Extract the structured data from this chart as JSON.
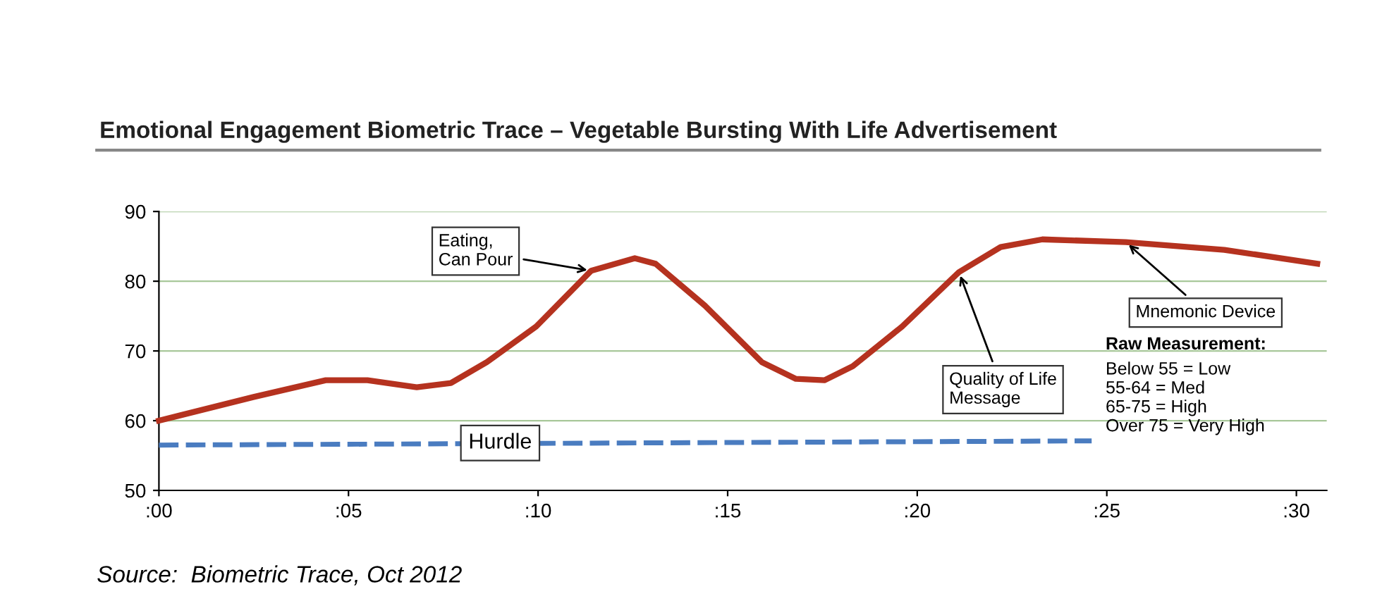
{
  "chart_data": {
    "type": "line",
    "title": "Emotional Engagement Biometric Trace – Vegetable Bursting With Life Advertisement",
    "xlim": [
      0,
      30.8
    ],
    "xticks": [
      {
        "value": 0,
        "label": ":00"
      },
      {
        "value": 5,
        "label": ":05"
      },
      {
        "value": 10,
        "label": ":10"
      },
      {
        "value": 15,
        "label": ":15"
      },
      {
        "value": 20,
        "label": ":20"
      },
      {
        "value": 25,
        "label": ":25"
      },
      {
        "value": 30,
        "label": ":30"
      }
    ],
    "ylim": [
      50,
      90
    ],
    "yticks": [
      50,
      60,
      70,
      80,
      90
    ],
    "grid": "y",
    "series": [
      {
        "color": "#b5321f",
        "line_style": "solid",
        "x": [
          0,
          2.5,
          4.4,
          5.5,
          6.8,
          7.7,
          8.65,
          9.95,
          11.4,
          12.55,
          13.1,
          14.4,
          15.9,
          16.8,
          17.55,
          18.3,
          19.6,
          21.1,
          22.2,
          23.3,
          25.5,
          28.1,
          30.55
        ],
        "values": [
          60,
          63.4,
          65.8,
          65.8,
          64.8,
          65.4,
          68.4,
          73.5,
          81.5,
          83.3,
          82.5,
          76.5,
          68.4,
          66,
          65.8,
          67.8,
          73.5,
          81.3,
          84.9,
          86,
          85.6,
          84.5,
          82.5
        ]
      },
      {
        "color": "#4a7cc0",
        "line_style": "dashed",
        "x": [
          0,
          24.6
        ],
        "values": [
          56.5,
          57.1
        ]
      }
    ],
    "annotations": [
      {
        "text": "Eating,\nCan Pour",
        "x": 11.4,
        "y": 81.5
      },
      {
        "text": "Quality of Life\nMessage",
        "x": 21.1,
        "y": 81.3
      },
      {
        "text": "Mnemonic Device",
        "x": 25.5,
        "y": 85.6
      },
      {
        "text": "Hurdle",
        "x": 9,
        "y": 56.8
      },
      "Raw Measurement:",
      "Below 55 = Low\n55-64 = Med\n65-75 = High\nOver 75 = Very High",
      "Source:  Biometric Trace, Oct 2012"
    ]
  }
}
